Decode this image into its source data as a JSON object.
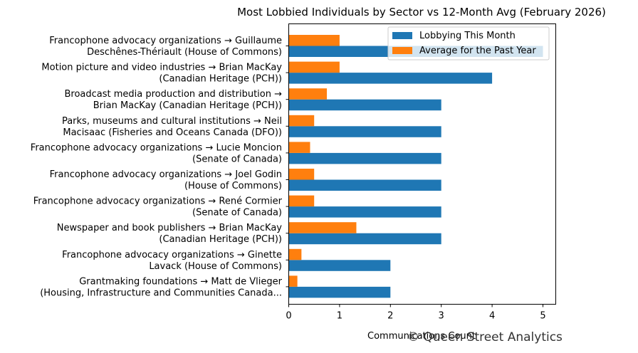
{
  "chart_data": {
    "type": "bar",
    "orientation": "horizontal",
    "title": "Most Lobbied Individuals by Sector vs 12-Month Avg (February 2026)",
    "xlabel": "Communications Count",
    "ylabel": "",
    "xlim": [
      0,
      5.25
    ],
    "xticks": [
      0,
      1,
      2,
      3,
      4,
      5
    ],
    "grid": false,
    "legend_position": "top-right",
    "categories": [
      [
        "Francophone advocacy organizations → Guillaume",
        "Deschênes-Thériault (House of Commons)"
      ],
      [
        "Motion picture and video industries → Brian MacKay",
        "(Canadian Heritage (PCH))"
      ],
      [
        "Broadcast media production and distribution →",
        "Brian MacKay (Canadian Heritage (PCH))"
      ],
      [
        "Parks, museums and cultural institutions → Neil",
        "Macisaac (Fisheries and Oceans Canada (DFO))"
      ],
      [
        "Francophone advocacy organizations → Lucie Moncion",
        "(Senate of Canada)"
      ],
      [
        "Francophone advocacy organizations → Joel Godin",
        "(House of Commons)"
      ],
      [
        "Francophone advocacy organizations → René Cormier",
        "(Senate of Canada)"
      ],
      [
        "Newspaper and book publishers → Brian MacKay",
        "(Canadian Heritage (PCH))"
      ],
      [
        "Francophone advocacy organizations → Ginette",
        "Lavack (House of Commons)"
      ],
      [
        "Grantmaking foundations → Matt de Vlieger",
        "(Housing, Infrastructure and Communities Canada..."
      ]
    ],
    "series": [
      {
        "name": "Lobbying This Month",
        "color": "#1f77b4",
        "values": [
          5,
          4,
          3,
          3,
          3,
          3,
          3,
          3,
          2,
          2
        ]
      },
      {
        "name": "Average for the Past Year",
        "color": "#ff7f0e",
        "values": [
          1.0,
          1.0,
          0.75,
          0.5,
          0.42,
          0.5,
          0.5,
          1.33,
          0.25,
          0.17
        ]
      }
    ]
  },
  "watermark": "© Queen Street Analytics"
}
